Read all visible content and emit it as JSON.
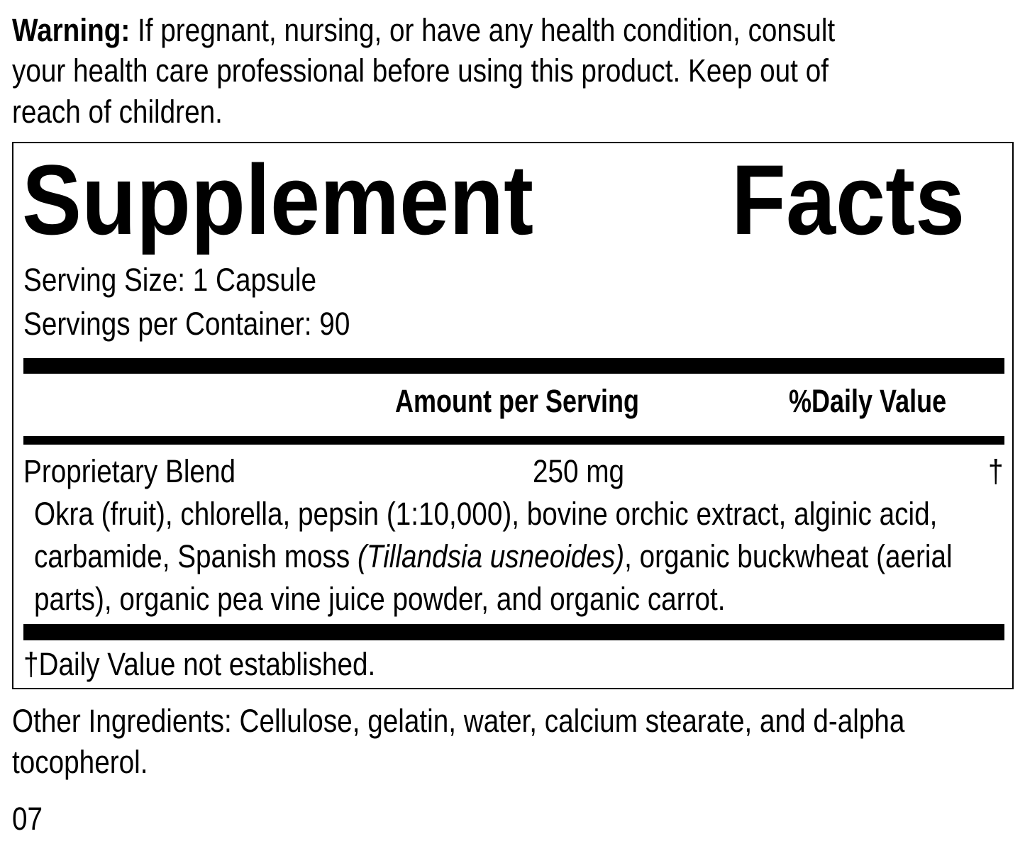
{
  "warning": {
    "label": "Warning:",
    "lines": [
      "If pregnant, nursing, or have any health condition, consult",
      "your health care professional before using this product. Keep out of",
      "reach of children."
    ]
  },
  "facts": {
    "title_left": "Supplement",
    "title_right": "Facts",
    "serving_size": "Serving Size: 1 Capsule",
    "servings_per_container": "Servings per Container: 90",
    "header_amount": "Amount per Serving",
    "header_dv": "%Daily Value",
    "row": {
      "name": "Proprietary Blend",
      "amount": "250 mg",
      "dv": "†"
    },
    "ingredients": {
      "line1": "Okra (fruit), chlorella, pepsin (1:10,000), bovine orchic extract, alginic acid,",
      "line2_a": "carbamide, Spanish moss ",
      "line2_italic": "(Tillandsia usneoides)",
      "line2_b": ", organic buckwheat (aerial",
      "line3": "parts), organic pea vine juice powder, and organic carrot."
    },
    "footnote": "†Daily Value not established."
  },
  "other_ingredients": [
    "Other Ingredients: Cellulose, gelatin, water, calcium stearate, and d-alpha",
    "tocopherol."
  ],
  "code": "07"
}
